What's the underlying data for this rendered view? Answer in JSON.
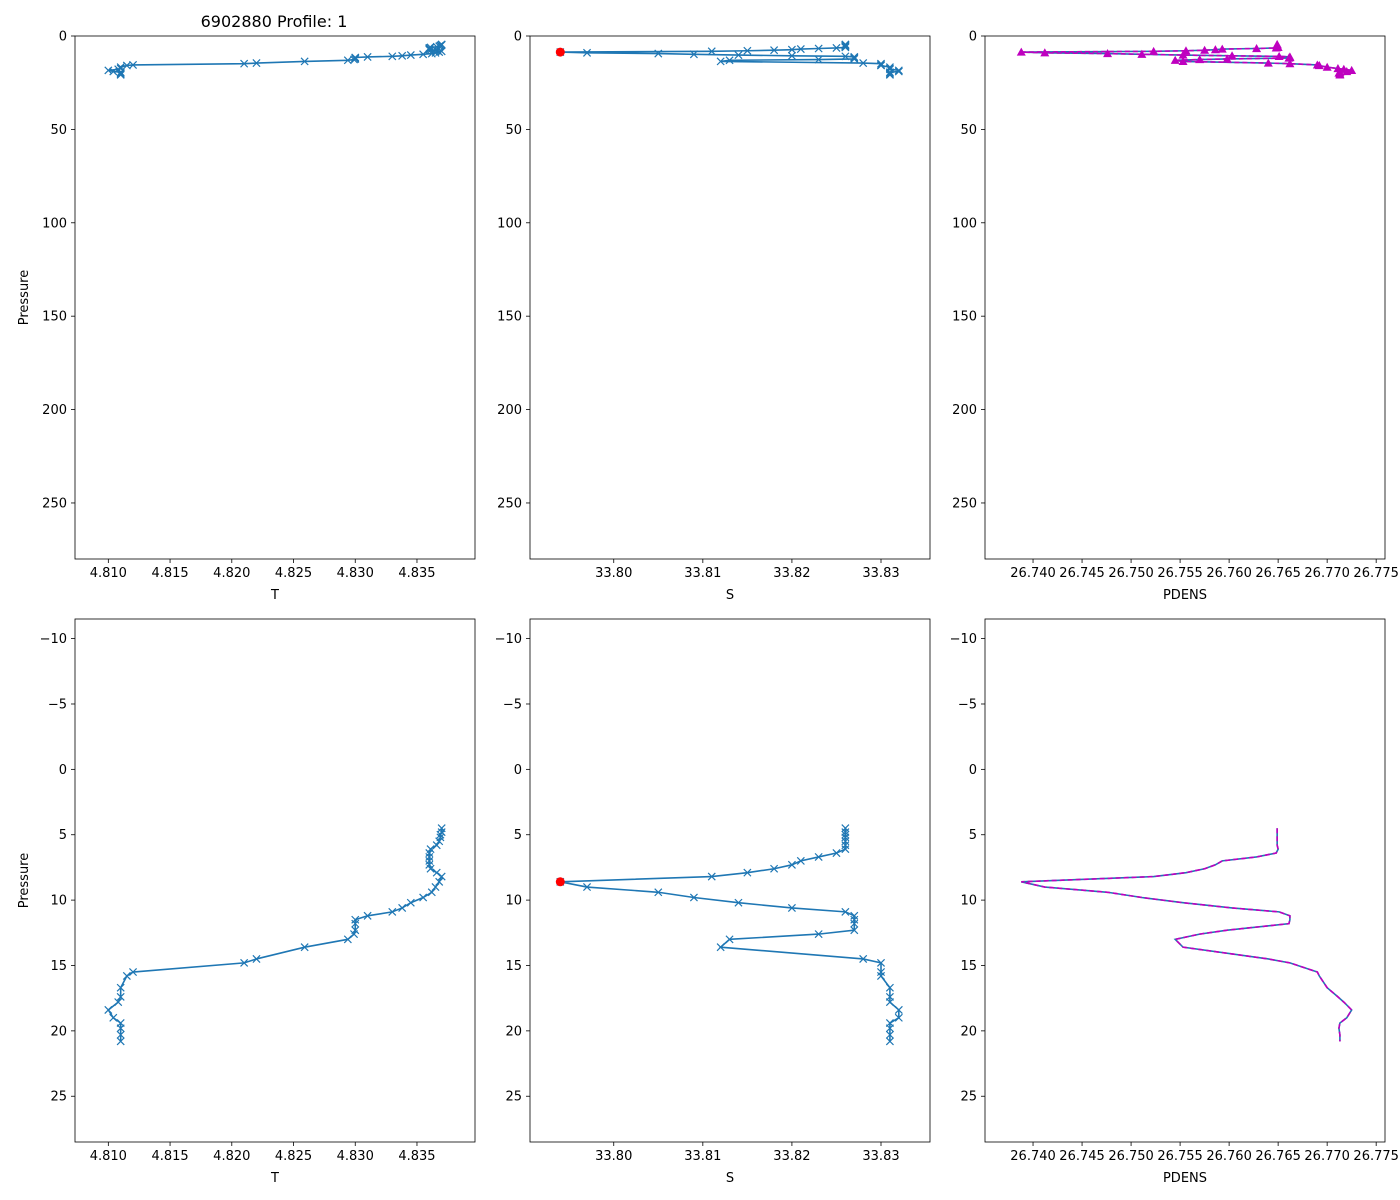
{
  "title": "6902880 Profile: 1",
  "colors": {
    "line": "#1f77b4",
    "flag": "#ff0000",
    "density": "#bf00bf"
  },
  "chart_data": [
    {
      "id": "top-T",
      "type": "line",
      "xlabel": "T",
      "ylabel": "Pressure",
      "xlim": [
        4.8073,
        4.8397
      ],
      "ylim": [
        280,
        0
      ],
      "xticks": [
        4.81,
        4.815,
        4.82,
        4.825,
        4.83,
        4.835
      ],
      "xticklabels": [
        "4.810",
        "4.815",
        "4.820",
        "4.825",
        "4.830",
        "4.835"
      ],
      "yticks": [
        0,
        50,
        100,
        150,
        200,
        250
      ],
      "yticklabels": [
        "0",
        "50",
        "100",
        "150",
        "200",
        "250"
      ],
      "series": [
        {
          "name": "T",
          "style": "line-x",
          "x_ref": "T",
          "y_ref": "P"
        }
      ]
    },
    {
      "id": "top-S",
      "type": "line",
      "xlabel": "S",
      "ylabel": "",
      "xlim": [
        33.7906,
        33.8355
      ],
      "ylim": [
        280,
        0
      ],
      "xticks": [
        33.8,
        33.81,
        33.82,
        33.83
      ],
      "xticklabels": [
        "33.80",
        "33.81",
        "33.82",
        "33.83"
      ],
      "yticks": [
        0,
        50,
        100,
        150,
        200,
        250
      ],
      "yticklabels": [
        "0",
        "50",
        "100",
        "150",
        "200",
        "250"
      ],
      "series": [
        {
          "name": "S",
          "style": "line-x",
          "x_ref": "S",
          "y_ref": "P"
        }
      ],
      "flagged": [
        {
          "x": 33.794,
          "y": 8.6
        }
      ]
    },
    {
      "id": "top-PDENS",
      "type": "line",
      "xlabel": "PDENS",
      "ylabel": "",
      "xlim": [
        26.7351,
        26.7759
      ],
      "ylim": [
        280,
        0
      ],
      "xticks": [
        26.74,
        26.745,
        26.75,
        26.755,
        26.76,
        26.765,
        26.77,
        26.775
      ],
      "xticklabels": [
        "26.740",
        "26.745",
        "26.750",
        "26.755",
        "26.760",
        "26.765",
        "26.770",
        "26.775"
      ],
      "yticks": [
        0,
        50,
        100,
        150,
        200,
        250
      ],
      "yticklabels": [
        "0",
        "50",
        "100",
        "150",
        "200",
        "250"
      ],
      "series": [
        {
          "name": "PDENS",
          "style": "line",
          "x_ref": "D",
          "y_ref": "P"
        },
        {
          "name": "PDENS computed",
          "style": "dashed-triangle",
          "x_ref": "D",
          "y_ref": "P"
        }
      ]
    },
    {
      "id": "bottom-T",
      "type": "line",
      "xlabel": "T",
      "ylabel": "Pressure",
      "xlim": [
        4.8073,
        4.8397
      ],
      "ylim": [
        28.5,
        -11.5
      ],
      "xticks": [
        4.81,
        4.815,
        4.82,
        4.825,
        4.83,
        4.835
      ],
      "xticklabels": [
        "4.810",
        "4.815",
        "4.820",
        "4.825",
        "4.830",
        "4.835"
      ],
      "yticks": [
        -10,
        -5,
        0,
        5,
        10,
        15,
        20,
        25
      ],
      "yticklabels": [
        "−10",
        "−5",
        "0",
        "5",
        "10",
        "15",
        "20",
        "25"
      ],
      "series": [
        {
          "name": "T",
          "style": "line-x",
          "x_ref": "T",
          "y_ref": "P"
        }
      ]
    },
    {
      "id": "bottom-S",
      "type": "line",
      "xlabel": "S",
      "ylabel": "",
      "xlim": [
        33.7906,
        33.8355
      ],
      "ylim": [
        28.5,
        -11.5
      ],
      "xticks": [
        33.8,
        33.81,
        33.82,
        33.83
      ],
      "xticklabels": [
        "33.80",
        "33.81",
        "33.82",
        "33.83"
      ],
      "yticks": [
        -10,
        -5,
        0,
        5,
        10,
        15,
        20,
        25
      ],
      "yticklabels": [
        "−10",
        "−5",
        "0",
        "5",
        "10",
        "15",
        "20",
        "25"
      ],
      "series": [
        {
          "name": "S",
          "style": "line-x",
          "x_ref": "S",
          "y_ref": "P"
        }
      ],
      "flagged": [
        {
          "x": 33.794,
          "y": 8.6
        }
      ]
    },
    {
      "id": "bottom-PDENS",
      "type": "line",
      "xlabel": "PDENS",
      "ylabel": "",
      "xlim": [
        26.7351,
        26.7759
      ],
      "ylim": [
        28.5,
        -11.5
      ],
      "xticks": [
        26.74,
        26.745,
        26.75,
        26.755,
        26.76,
        26.765,
        26.77,
        26.775
      ],
      "xticklabels": [
        "26.740",
        "26.745",
        "26.750",
        "26.755",
        "26.760",
        "26.765",
        "26.770",
        "26.775"
      ],
      "yticks": [
        -10,
        -5,
        0,
        5,
        10,
        15,
        20,
        25
      ],
      "yticklabels": [
        "−10",
        "−5",
        "0",
        "5",
        "10",
        "15",
        "20",
        "25"
      ],
      "series": [
        {
          "name": "PDENS",
          "style": "line",
          "x_ref": "D",
          "y_ref": "P"
        },
        {
          "name": "PDENS computed",
          "style": "dashed",
          "x_ref": "D",
          "y_ref": "P"
        }
      ]
    }
  ],
  "profile": {
    "P": [
      4.5,
      4.8,
      5.0,
      5.2,
      5.5,
      5.8,
      6.1,
      6.4,
      6.7,
      7.0,
      7.3,
      7.6,
      7.9,
      8.2,
      8.6,
      9.0,
      9.4,
      9.8,
      10.2,
      10.6,
      10.9,
      11.2,
      11.5,
      11.8,
      12.3,
      12.6,
      13.0,
      13.6,
      14.5,
      14.8,
      15.5,
      15.8,
      16.7,
      17.4,
      17.8,
      18.4,
      19.0,
      19.4,
      19.8,
      20.3,
      20.8
    ],
    "T": [
      4.837,
      4.837,
      4.8369,
      4.8369,
      4.8368,
      4.8366,
      4.8361,
      4.836,
      4.836,
      4.836,
      4.836,
      4.8361,
      4.8366,
      4.837,
      4.8368,
      4.8365,
      4.8362,
      4.8355,
      4.8345,
      4.8338,
      4.833,
      4.831,
      4.83,
      4.83,
      4.83,
      4.8299,
      4.8294,
      4.8259,
      4.822,
      4.821,
      4.812,
      4.8115,
      4.811,
      4.811,
      4.8108,
      4.81,
      4.8104,
      4.811,
      4.811,
      4.811,
      4.811
    ],
    "S": [
      33.826,
      33.826,
      33.826,
      33.826,
      33.826,
      33.826,
      33.826,
      33.825,
      33.823,
      33.821,
      33.82,
      33.818,
      33.815,
      33.811,
      33.794,
      33.797,
      33.805,
      33.809,
      33.814,
      33.82,
      33.826,
      33.827,
      33.827,
      33.827,
      33.827,
      33.823,
      33.813,
      33.812,
      33.828,
      33.83,
      33.83,
      33.83,
      33.831,
      33.831,
      33.831,
      33.832,
      33.832,
      33.831,
      33.831,
      33.831,
      33.831
    ],
    "D": [
      26.7649,
      26.7649,
      26.7649,
      26.7649,
      26.7649,
      26.7649,
      26.765,
      26.7648,
      26.7628,
      26.7593,
      26.7586,
      26.7575,
      26.7556,
      26.7523,
      26.7388,
      26.7412,
      26.7476,
      26.7511,
      26.7553,
      26.7603,
      26.7651,
      26.7662,
      26.7662,
      26.7661,
      26.7598,
      26.757,
      26.7545,
      26.7553,
      26.764,
      26.7662,
      26.769,
      26.7692,
      26.77,
      26.7711,
      26.7717,
      26.7725,
      26.772,
      26.7713,
      26.7712,
      26.7713,
      26.7713
    ]
  }
}
